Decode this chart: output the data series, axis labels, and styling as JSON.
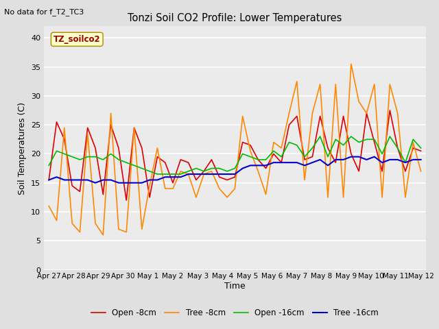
{
  "title": "Tonzi Soil CO2 Profile: Lower Temperatures",
  "subtitle": "No data for f_T2_TC3",
  "ylabel": "Soil Temperatures (C)",
  "xlabel": "Time",
  "watermark": "TZ_soilco2",
  "ylim": [
    0,
    42
  ],
  "yticks": [
    0,
    5,
    10,
    15,
    20,
    25,
    30,
    35,
    40
  ],
  "background_color": "#e0e0e0",
  "plot_bg_color": "#ebebeb",
  "x_labels": [
    "Apr 27",
    "Apr 28",
    "Apr 29",
    "Apr 30",
    "May 1",
    "May 2",
    "May 3",
    "May 4",
    "May 5",
    "May 6",
    "May 7",
    "May 8",
    "May 9",
    "May 10",
    "May 11",
    "May 12"
  ],
  "series_order": [
    "open_8cm",
    "tree_8cm",
    "open_16cm",
    "tree_16cm"
  ],
  "series": {
    "open_8cm": {
      "color": "#dd0000",
      "label": "Open -8cm",
      "linewidth": 1.2,
      "values": [
        15.5,
        25.5,
        22.5,
        14.5,
        13.5,
        24.5,
        21.0,
        13.0,
        25.0,
        21.0,
        12.0,
        24.5,
        21.0,
        12.5,
        19.5,
        18.5,
        15.0,
        19.0,
        18.5,
        15.5,
        17.0,
        19.0,
        16.0,
        15.5,
        16.0,
        22.0,
        21.5,
        19.0,
        17.5,
        20.0,
        18.5,
        25.0,
        26.5,
        19.0,
        19.5,
        26.5,
        21.0,
        18.5,
        26.5,
        20.0,
        17.0,
        27.0,
        22.0,
        17.0,
        27.5,
        21.0,
        17.0,
        21.0,
        20.5
      ]
    },
    "tree_8cm": {
      "color": "#ff8800",
      "label": "Tree -8cm",
      "linewidth": 1.2,
      "values": [
        11.0,
        8.5,
        24.5,
        8.0,
        6.5,
        23.5,
        8.0,
        6.0,
        27.0,
        7.0,
        6.5,
        24.5,
        7.0,
        14.5,
        21.0,
        14.0,
        14.0,
        17.0,
        16.5,
        12.5,
        16.5,
        17.0,
        14.0,
        12.5,
        14.0,
        26.5,
        20.5,
        17.0,
        13.0,
        22.0,
        21.0,
        27.0,
        32.5,
        15.5,
        27.0,
        32.0,
        12.5,
        32.0,
        12.5,
        35.5,
        29.0,
        27.0,
        32.0,
        12.5,
        32.0,
        27.0,
        12.5,
        22.0,
        17.0
      ]
    },
    "open_16cm": {
      "color": "#00bb00",
      "label": "Open -16cm",
      "linewidth": 1.2,
      "values": [
        18.0,
        20.5,
        20.0,
        19.5,
        19.0,
        19.5,
        19.5,
        19.0,
        20.0,
        19.0,
        18.5,
        18.0,
        17.5,
        17.0,
        16.5,
        16.5,
        16.5,
        16.5,
        17.0,
        17.5,
        17.0,
        17.5,
        17.5,
        17.0,
        17.5,
        20.0,
        19.5,
        19.0,
        19.0,
        20.5,
        19.5,
        22.0,
        21.5,
        19.5,
        21.0,
        23.0,
        19.5,
        22.5,
        21.5,
        23.0,
        22.0,
        22.5,
        22.5,
        20.0,
        23.0,
        21.0,
        18.5,
        22.5,
        21.0
      ]
    },
    "tree_16cm": {
      "color": "#0000cc",
      "label": "Tree -16cm",
      "linewidth": 1.5,
      "values": [
        15.5,
        16.0,
        15.5,
        15.5,
        15.5,
        15.5,
        15.0,
        15.5,
        15.5,
        15.0,
        15.0,
        15.0,
        15.0,
        15.5,
        15.5,
        16.0,
        16.0,
        16.0,
        16.5,
        16.5,
        16.5,
        16.5,
        16.5,
        16.5,
        16.5,
        17.5,
        18.0,
        18.0,
        18.0,
        18.5,
        18.5,
        18.5,
        18.5,
        18.0,
        18.5,
        19.0,
        18.0,
        19.0,
        19.0,
        19.5,
        19.5,
        19.0,
        19.5,
        18.5,
        19.0,
        19.0,
        18.5,
        19.0,
        19.0
      ]
    }
  }
}
